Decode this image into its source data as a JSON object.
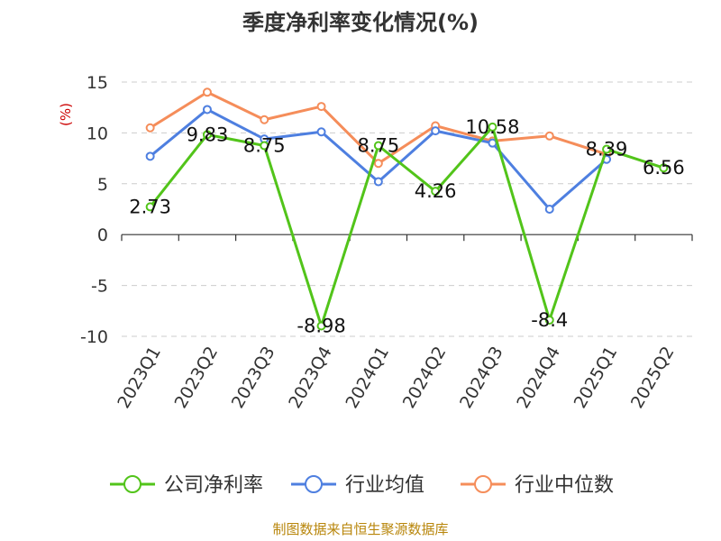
{
  "chart_data": {
    "type": "line",
    "title": "季度净利率变化情况(%)",
    "ylabel": "(%)",
    "categories": [
      "2023Q1",
      "2023Q2",
      "2023Q3",
      "2023Q4",
      "2024Q1",
      "2024Q2",
      "2024Q3",
      "2024Q4",
      "2025Q1",
      "2025Q2"
    ],
    "ylim": [
      -10,
      15
    ],
    "yticks": [
      15,
      10,
      5,
      0,
      -5,
      -10
    ],
    "grid": true,
    "legend_position": "bottom",
    "series": [
      {
        "name": "公司净利率",
        "color": "#52c41a",
        "values": [
          2.73,
          9.83,
          8.75,
          -8.98,
          8.75,
          4.26,
          10.58,
          -8.4,
          8.39,
          6.56
        ],
        "labels": [
          "2.73",
          "9.83",
          "8.75",
          "-8.98",
          "8.75",
          "4.26",
          "10.58",
          "-8.4",
          "8.39",
          "6.56"
        ]
      },
      {
        "name": "行业均值",
        "color": "#4e7fe0",
        "values": [
          7.7,
          12.3,
          9.4,
          10.1,
          5.2,
          10.2,
          9.0,
          2.5,
          7.4,
          null
        ]
      },
      {
        "name": "行业中位数",
        "color": "#f58d5a",
        "values": [
          10.5,
          14.0,
          11.3,
          12.6,
          7.0,
          10.7,
          9.2,
          9.7,
          7.9,
          null
        ]
      }
    ]
  },
  "footer": "制图数据来自恒生聚源数据库"
}
